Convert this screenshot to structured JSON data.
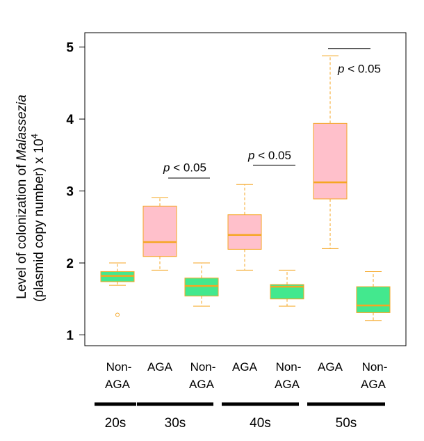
{
  "chart_data": {
    "type": "boxplot",
    "ylabel": {
      "line1_prefix": "Level of colonization of ",
      "line1_italic": "Malassezia",
      "line2": "(plasmid copy number) x 10",
      "line2_sup": "4"
    },
    "ylim": [
      0.85,
      5.2
    ],
    "yticks": [
      "1",
      "2",
      "3",
      "4",
      "5"
    ],
    "colors": {
      "AGA": "#ffc0cb",
      "Non-AGA": "#43e88e",
      "stroke": "#f5a623",
      "median": "#f5a623",
      "frame": "#000000"
    },
    "boxes": [
      {
        "label_lines": [
          "Non-",
          "AGA"
        ],
        "group": "Non-AGA",
        "whisker_low": 1.69,
        "q1": 1.74,
        "median": 1.82,
        "q3": 1.88,
        "whisker_high": 2.0,
        "outliers": [
          1.28
        ]
      },
      {
        "label_lines": [
          "AGA"
        ],
        "group": "AGA",
        "whisker_low": 1.9,
        "q1": 2.09,
        "median": 2.29,
        "q3": 2.79,
        "whisker_high": 2.91,
        "outliers": []
      },
      {
        "label_lines": [
          "Non-",
          "AGA"
        ],
        "group": "Non-AGA",
        "whisker_low": 1.4,
        "q1": 1.54,
        "median": 1.68,
        "q3": 1.79,
        "whisker_high": 2.0,
        "outliers": []
      },
      {
        "label_lines": [
          "AGA"
        ],
        "group": "AGA",
        "whisker_low": 1.9,
        "q1": 2.19,
        "median": 2.39,
        "q3": 2.67,
        "whisker_high": 3.09,
        "outliers": []
      },
      {
        "label_lines": [
          "Non-",
          "AGA"
        ],
        "group": "Non-AGA",
        "whisker_low": 1.4,
        "q1": 1.5,
        "median": 1.67,
        "q3": 1.7,
        "whisker_high": 1.9,
        "outliers": []
      },
      {
        "label_lines": [
          "AGA"
        ],
        "group": "AGA",
        "whisker_low": 2.2,
        "q1": 2.89,
        "median": 3.12,
        "q3": 3.94,
        "whisker_high": 4.88,
        "outliers": []
      },
      {
        "label_lines": [
          "Non-",
          "AGA"
        ],
        "group": "Non-AGA",
        "whisker_low": 1.2,
        "q1": 1.31,
        "median": 1.41,
        "q3": 1.67,
        "whisker_high": 1.88,
        "outliers": []
      }
    ],
    "age_groups": [
      {
        "label": "20s",
        "boxes": [
          0
        ]
      },
      {
        "label": "30s",
        "boxes": [
          1,
          2
        ]
      },
      {
        "label": "40s",
        "boxes": [
          3,
          4
        ]
      },
      {
        "label": "50s",
        "boxes": [
          5,
          6
        ]
      }
    ],
    "annotations": [
      {
        "p_italic": "p",
        "text": " < 0.05",
        "between": [
          1,
          2
        ],
        "line_y": 3.18,
        "text_y": 3.33
      },
      {
        "p_italic": "p",
        "text": " < 0.05",
        "between": [
          3,
          4
        ],
        "line_y": 3.36,
        "text_y": 3.5
      },
      {
        "p_italic": "p",
        "text": " < 0.05",
        "between": [
          5,
          6
        ],
        "line_y": 4.98,
        "text_y": 4.7
      }
    ]
  }
}
